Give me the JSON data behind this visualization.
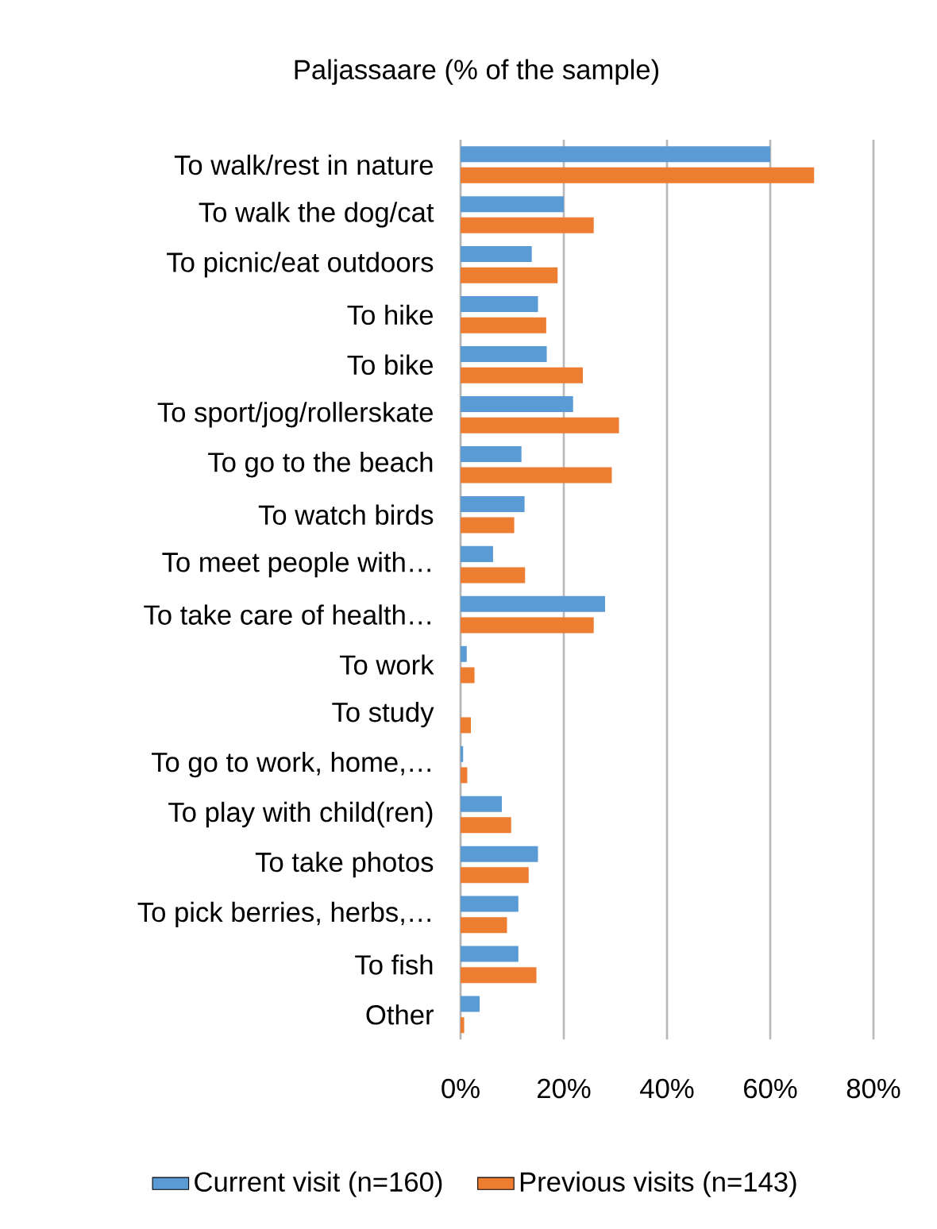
{
  "chart_data": {
    "type": "bar",
    "orientation": "horizontal",
    "title": "Paljassaare (% of the sample)",
    "categories": [
      "To walk/rest in nature",
      "To walk the dog/cat",
      "To picnic/eat outdoors",
      "To hike",
      "To bike",
      "To sport/jog/rollerskate",
      "To go to the beach",
      "To watch birds",
      "To meet people with…",
      "To take care of health…",
      "To work",
      "To study",
      "To go to work, home,…",
      "To play with child(ren)",
      "To take photos",
      "To pick berries, herbs,…",
      "To fish",
      "Other"
    ],
    "series": [
      {
        "name": "Current visit (n=160)",
        "color": "#5b9bd5",
        "values": [
          60.0,
          20.0,
          13.8,
          15.0,
          16.7,
          21.8,
          11.8,
          12.4,
          6.3,
          28.0,
          1.2,
          0,
          0.5,
          8.0,
          15.0,
          11.2,
          11.2,
          3.7
        ]
      },
      {
        "name": "Previous visits (n=143)",
        "color": "#ed7d31",
        "values": [
          68.5,
          25.8,
          18.8,
          16.6,
          23.7,
          30.7,
          29.3,
          10.4,
          12.5,
          25.8,
          2.7,
          2.0,
          1.3,
          9.8,
          13.2,
          9.0,
          14.7,
          0.7
        ]
      }
    ],
    "xlim": [
      0,
      80
    ],
    "xticks": [
      {
        "value": 0,
        "label": "0%"
      },
      {
        "value": 20,
        "label": "20%"
      },
      {
        "value": 40,
        "label": "40%"
      },
      {
        "value": 60,
        "label": "60%"
      },
      {
        "value": 80,
        "label": "80%"
      }
    ],
    "grid": "x",
    "legend": "bottom"
  }
}
